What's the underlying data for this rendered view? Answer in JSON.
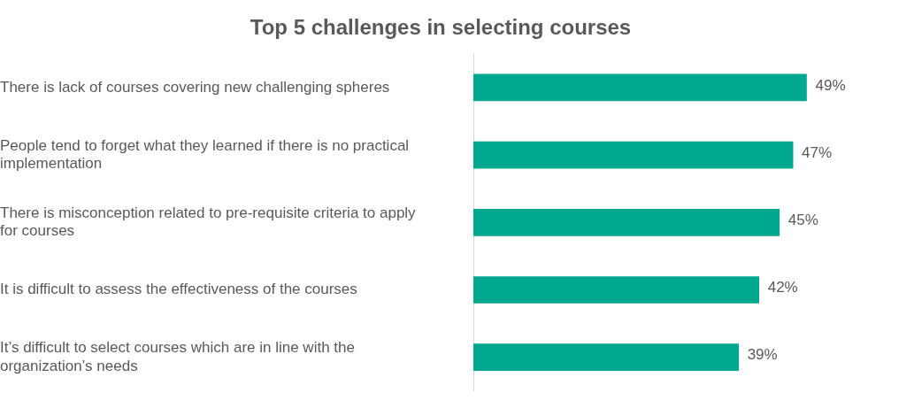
{
  "chart_data": {
    "type": "bar",
    "orientation": "horizontal",
    "title": "Top 5 challenges in selecting courses",
    "categories": [
      "There is lack of courses covering new challenging spheres",
      "People tend to forget what they learned if there is no practical implementation",
      "There is misconception related to pre-requisite criteria to apply for courses",
      "It is difficult to assess the effectiveness of the courses",
      "It’s difficult to select courses which are in line with the organization’s needs"
    ],
    "values": [
      49,
      47,
      45,
      42,
      39
    ],
    "value_labels": [
      "49%",
      "47%",
      "45%",
      "42%",
      "39%"
    ],
    "color": "#00a88e",
    "grid": false,
    "legend": false,
    "tick_labels": "y"
  }
}
